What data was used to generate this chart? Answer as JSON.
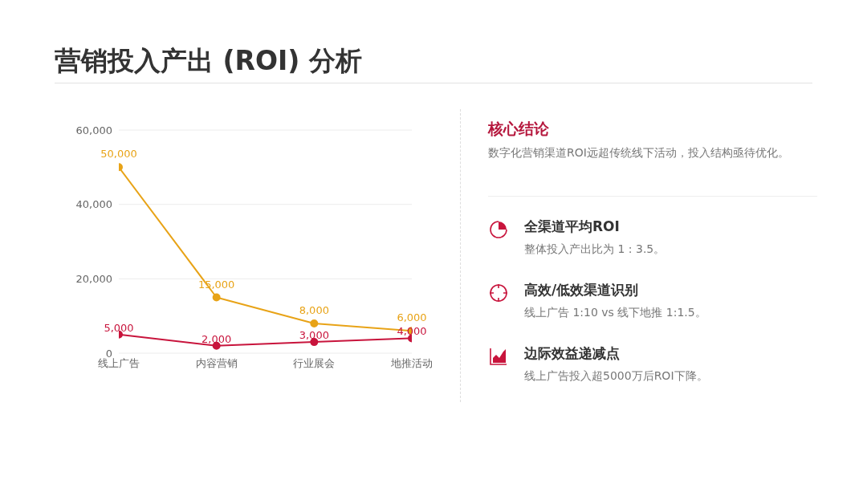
{
  "chart_data": {
    "type": "line",
    "title": "营销投入产出 (ROI) 分析",
    "categories": [
      "线上广告",
      "内容营销",
      "行业展会",
      "地推活动"
    ],
    "series": [
      {
        "color": "#e8a317",
        "values": [
          50000,
          15000,
          8000,
          6000
        ],
        "value_labels": [
          "50,000",
          "15,000",
          "8,000",
          "6,000"
        ]
      },
      {
        "color": "#c8143c",
        "values": [
          5000,
          2000,
          3000,
          4000
        ],
        "value_labels": [
          "5,000",
          "2,000",
          "3,000",
          "4,000"
        ]
      }
    ],
    "ylim": [
      0,
      60000
    ],
    "yticks": [
      {
        "value": 0,
        "label": "0"
      },
      {
        "value": 20000,
        "label": "20,000"
      },
      {
        "value": 40000,
        "label": "40,000"
      },
      {
        "value": 60000,
        "label": "60,000"
      }
    ],
    "grid": "y",
    "marker": "circle",
    "line_style": "solid",
    "annotations": [
      "核心结论",
      "数字化营销渠道ROI远超传统线下活动，投入结构亟待优化。",
      "全渠道平均ROI",
      "整体投入产出比为 1 : 3.5。",
      "高效/低效渠道识别",
      "线上广告 1:10 vs 线下地推 1:1.5。",
      "边际效益递减点",
      "线上广告投入超5000万后ROI下降。"
    ]
  }
}
